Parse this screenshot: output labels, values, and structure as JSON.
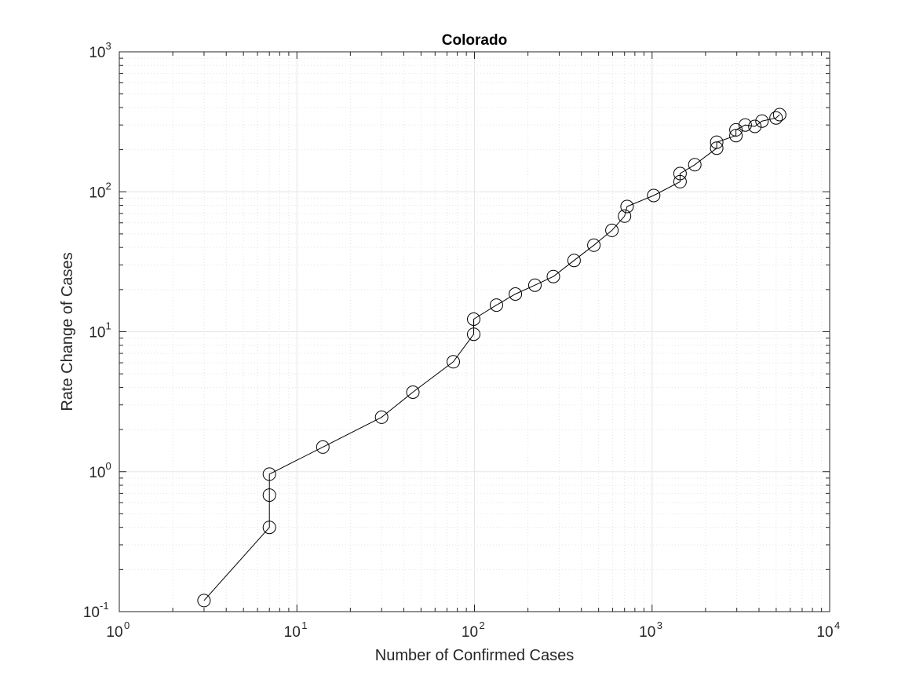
{
  "chart_data": {
    "type": "scatter",
    "title": "Colorado",
    "xlabel": "Number of Confirmed Cases",
    "ylabel": "Rate Change of Cases",
    "xscale": "log",
    "yscale": "log",
    "xlim": [
      1,
      10000
    ],
    "ylim": [
      0.1,
      1000
    ],
    "grid": true,
    "minor_grid": true,
    "marker": "open-circle",
    "line": true,
    "color": "#000000",
    "x_ticks": [
      {
        "base": "10",
        "exp": "0"
      },
      {
        "base": "10",
        "exp": "1"
      },
      {
        "base": "10",
        "exp": "2"
      },
      {
        "base": "10",
        "exp": "3"
      },
      {
        "base": "10",
        "exp": "4"
      }
    ],
    "y_ticks": [
      {
        "base": "10",
        "exp": "-1"
      },
      {
        "base": "10",
        "exp": "0"
      },
      {
        "base": "10",
        "exp": "1"
      },
      {
        "base": "10",
        "exp": "2"
      },
      {
        "base": "10",
        "exp": "3"
      }
    ],
    "series": [
      {
        "x": [
          3,
          7,
          7,
          7,
          14,
          30,
          45,
          76,
          99,
          99,
          133,
          170,
          219,
          278,
          364,
          470,
          594,
          700,
          723,
          1021,
          1437,
          1437,
          1741,
          2311,
          2311,
          2966,
          2966,
          3345,
          3791,
          4158,
          4989,
          5231
        ],
        "y": [
          0.12,
          0.4,
          0.68,
          0.96,
          1.5,
          2.45,
          3.7,
          6.1,
          9.6,
          12.3,
          15.5,
          18.6,
          21.5,
          24.8,
          32.3,
          41.5,
          53,
          67,
          78.5,
          94,
          118,
          135,
          156,
          205,
          226,
          252,
          277,
          300,
          293,
          320,
          337,
          356
        ]
      }
    ]
  }
}
